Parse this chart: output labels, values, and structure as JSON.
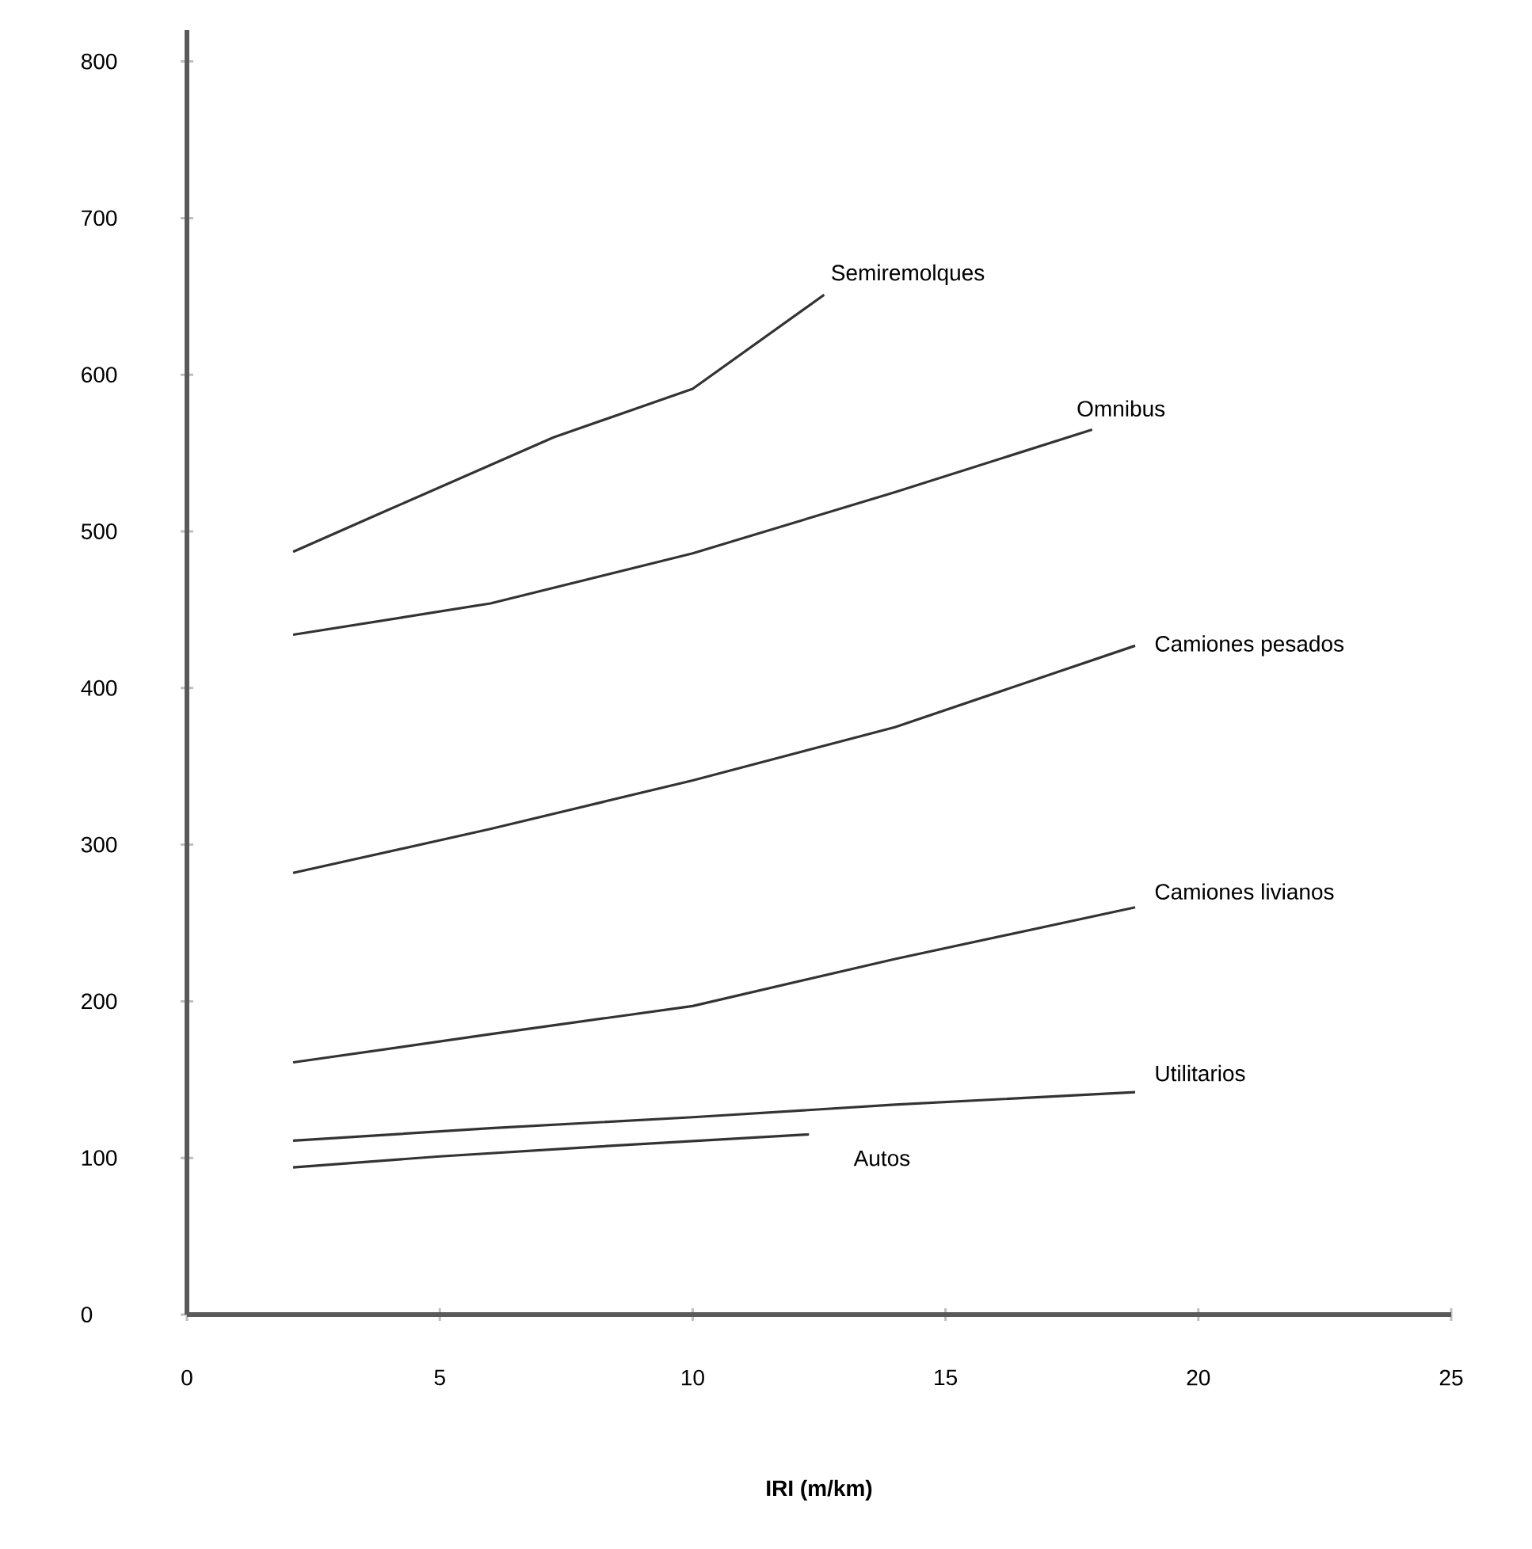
{
  "chart_data": {
    "type": "line",
    "xlabel": "IRI (m/km)",
    "xlim": [
      0,
      25
    ],
    "ylim": [
      0,
      820
    ],
    "xticks": [
      0,
      5,
      10,
      15,
      20,
      25
    ],
    "yticks": [
      0,
      100,
      200,
      300,
      400,
      500,
      600,
      700,
      800
    ],
    "grid": false,
    "marker": "none",
    "line_style": "solid",
    "series": [
      {
        "name": "Semiremolques",
        "color": "#333333",
        "x": [
          2.1,
          4,
          7.25,
          10,
          12.6
        ],
        "values": [
          487,
          514,
          560,
          591,
          651
        ]
      },
      {
        "name": "Omnibus",
        "color": "#333333",
        "x": [
          2.1,
          6,
          10,
          14,
          17.9
        ],
        "values": [
          434,
          454,
          486,
          525,
          565
        ]
      },
      {
        "name": "Camiones pesados",
        "color": "#333333",
        "x": [
          2.1,
          6,
          10,
          14,
          18.75
        ],
        "values": [
          282,
          310,
          341,
          375,
          427
        ]
      },
      {
        "name": "Camiones livianos",
        "color": "#333333",
        "x": [
          2.1,
          6,
          10,
          14,
          18.75
        ],
        "values": [
          161,
          179,
          197,
          227,
          260
        ]
      },
      {
        "name": "Utilitarios",
        "color": "#333333",
        "x": [
          2.1,
          6,
          10,
          14,
          18.75
        ],
        "values": [
          111,
          119,
          126,
          134,
          142
        ]
      },
      {
        "name": "Autos",
        "color": "#333333",
        "x": [
          2.1,
          5,
          8,
          12.3
        ],
        "values": [
          94,
          101,
          107,
          115
        ]
      }
    ]
  }
}
